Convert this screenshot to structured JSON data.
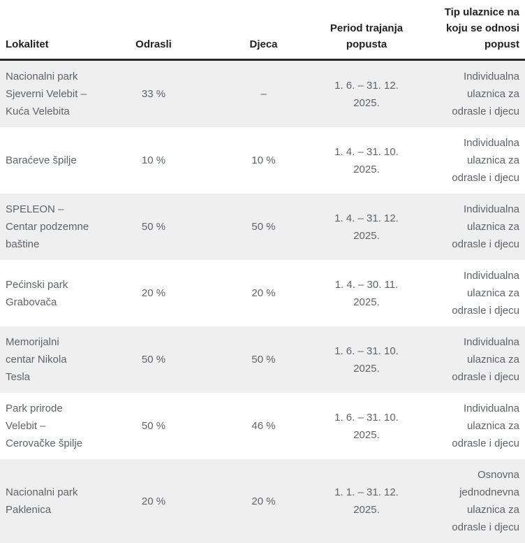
{
  "table": {
    "columns": {
      "lokalitet": "Lokalitet",
      "odrasli": "Odrasli",
      "djeca": "Djeca",
      "period": "Period trajanja popusta",
      "tip": "Tip ulaznice na koju se odnosi popust"
    },
    "rows": [
      {
        "lokalitet": "Nacionalni park Sjeverni Velebit – Kuća Velebita",
        "odrasli": "33 %",
        "djeca": "–",
        "period": "1. 6. – 31. 12. 2025.",
        "tip": "Individualna ulaznica za odrasle i djecu"
      },
      {
        "lokalitet": "Baraćeve špilje",
        "odrasli": "10 %",
        "djeca": "10 %",
        "period": "1. 4. – 31. 10. 2025.",
        "tip": "Individualna ulaznica za odrasle i djecu"
      },
      {
        "lokalitet": "SPELEON – Centar podzemne baštine",
        "odrasli": "50 %",
        "djeca": "50 %",
        "period": "1. 4. – 31. 12. 2025.",
        "tip": "Individualna ulaznica za odrasle i djecu"
      },
      {
        "lokalitet": "Pećinski park Grabovača",
        "odrasli": "20 %",
        "djeca": "20 %",
        "period": "1. 4. – 30. 11. 2025.",
        "tip": "Individualna ulaznica za odrasle i djecu"
      },
      {
        "lokalitet": "Memorijalni centar Nikola Tesla",
        "odrasli": "50 %",
        "djeca": "50 %",
        "period": "1. 6. – 31. 10. 2025.",
        "tip": "Individualna ulaznica za odrasle i djecu"
      },
      {
        "lokalitet": "Park prirode Velebit – Cerovačke špilje",
        "odrasli": "50 %",
        "djeca": "46 %",
        "period": "1. 6. – 31. 10. 2025.",
        "tip": "Individualna ulaznica za odrasle i djecu"
      },
      {
        "lokalitet": "Nacionalni park Paklenica",
        "odrasli": "20 %",
        "djeca": "20 %",
        "period": "1. 1. – 31. 12. 2025.",
        "tip": "Osnovna jednodnevna ulaznica za odrasle i djecu"
      }
    ]
  },
  "colors": {
    "header_text": "#212121",
    "body_text": "#5f6368",
    "alt_row_bg": "#efefef",
    "header_rule": "#262626"
  }
}
